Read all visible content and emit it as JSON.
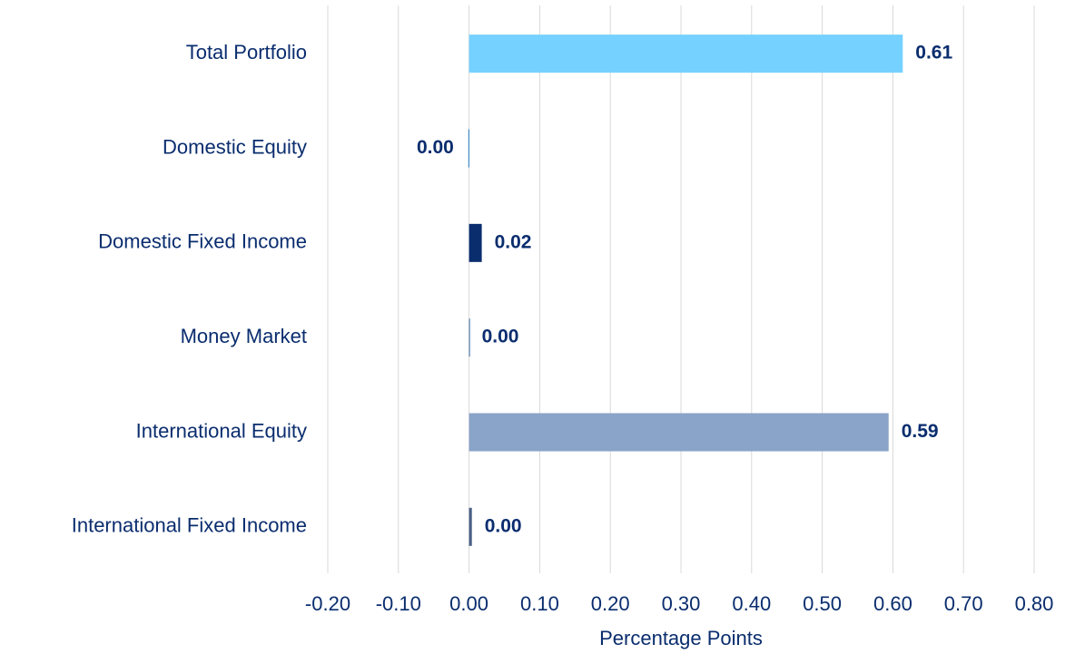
{
  "chart_data": {
    "type": "hbar",
    "categories": [
      "Total Portfolio",
      "Domestic Equity",
      "Domestic Fixed Income",
      "Money Market",
      "International Equity",
      "International Fixed Income"
    ],
    "values": [
      0.614,
      -0.001,
      0.018,
      0.0,
      0.594,
      0.004
    ],
    "value_labels": [
      "0.61",
      "0.00",
      "0.02",
      "0.00",
      "0.59",
      "0.00"
    ],
    "colors": [
      "#75d1ff",
      "#1f7bc4",
      "#0a2d6e",
      "#3b6aa0",
      "#8aa3c8",
      "#4a5f86"
    ],
    "xlim": [
      -0.2,
      0.8
    ],
    "xticks": [
      {
        "value": -0.2,
        "label": "-0.20"
      },
      {
        "value": -0.1,
        "label": "-0.10"
      },
      {
        "value": 0,
        "label": "0.00"
      },
      {
        "value": 0.1,
        "label": "0.10"
      },
      {
        "value": 0.2,
        "label": "0.20"
      },
      {
        "value": 0.3,
        "label": "0.30"
      },
      {
        "value": 0.4,
        "label": "0.40"
      },
      {
        "value": 0.5,
        "label": "0.50"
      },
      {
        "value": 0.6,
        "label": "0.60"
      },
      {
        "value": 0.7,
        "label": "0.70"
      },
      {
        "value": 0.8,
        "label": "0.80"
      }
    ],
    "xlabel": "Percentage Points",
    "grid": true
  }
}
